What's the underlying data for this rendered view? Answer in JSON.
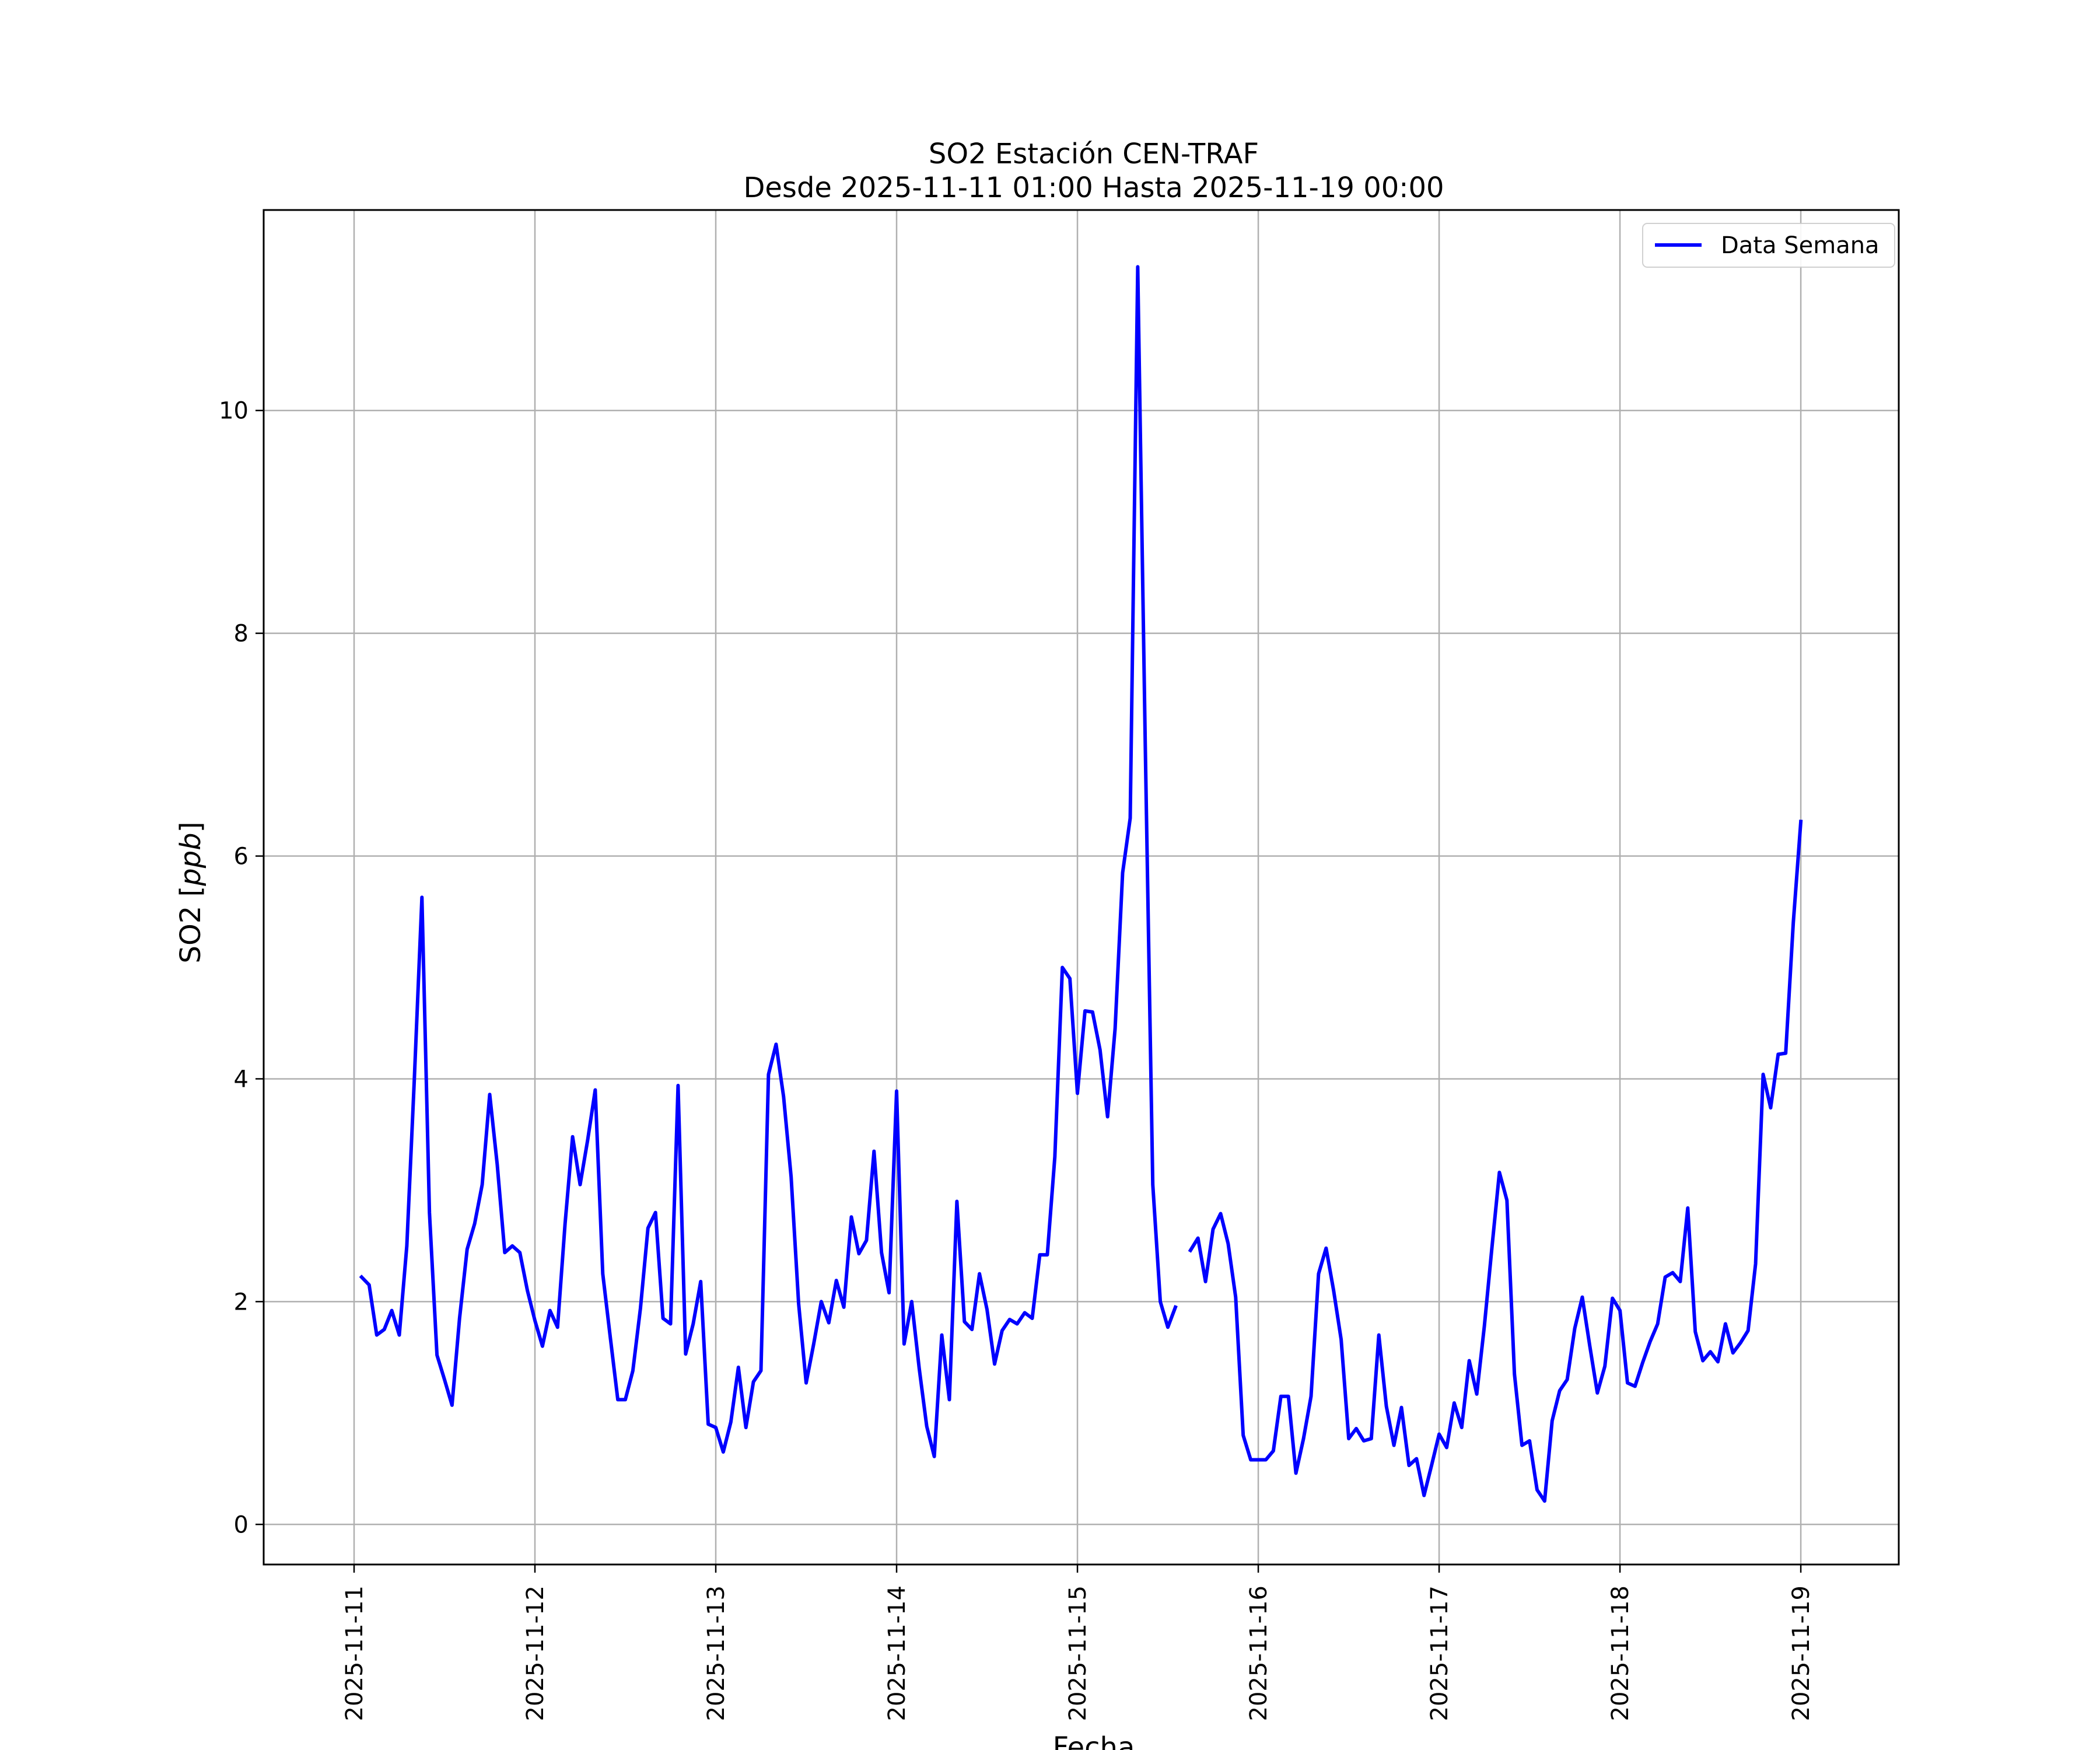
{
  "chart_data": {
    "type": "line",
    "title": "SO2 Estación CEN-TRAF",
    "subtitle": "Desde 2025-11-11 01:00 Hasta 2025-11-19 00:00",
    "xlabel": "Fecha",
    "ylabel_main": "SO2 [",
    "ylabel_unit": "ppb",
    "ylabel_end": "]",
    "x_ticks": [
      "2025-11-11",
      "2025-11-12",
      "2025-11-13",
      "2025-11-14",
      "2025-11-15",
      "2025-11-16",
      "2025-11-17",
      "2025-11-18",
      "2025-11-19"
    ],
    "y_ticks": [
      0,
      2,
      4,
      6,
      8,
      10
    ],
    "xlim": [
      "2025-11-10 12:00",
      "2025-11-19 13:00"
    ],
    "ylim": [
      -0.36,
      11.8
    ],
    "grid": true,
    "legend_position": "top-right",
    "colors": {
      "series": "#0000ff",
      "grid": "#b0b0b0",
      "axes": "#000000"
    },
    "series": [
      {
        "name": "Data Semana",
        "start": "2025-11-11 01:00",
        "interval_hours": 1,
        "values": [
          2.22,
          2.15,
          1.7,
          1.75,
          1.92,
          1.7,
          2.5,
          4.0,
          5.63,
          2.8,
          1.52,
          1.3,
          1.07,
          1.85,
          2.47,
          2.7,
          3.05,
          3.86,
          3.23,
          2.44,
          2.5,
          2.44,
          2.1,
          1.83,
          1.6,
          1.92,
          1.77,
          2.7,
          3.48,
          3.05,
          3.45,
          3.9,
          2.25,
          1.68,
          1.12,
          1.12,
          1.38,
          1.94,
          2.66,
          2.8,
          1.85,
          1.8,
          3.94,
          1.53,
          1.8,
          2.18,
          0.9,
          0.87,
          0.65,
          0.92,
          1.41,
          0.87,
          1.28,
          1.38,
          4.04,
          4.31,
          3.84,
          3.12,
          1.98,
          1.27,
          1.62,
          2.0,
          1.81,
          2.19,
          1.95,
          2.76,
          2.43,
          2.55,
          3.35,
          2.44,
          2.08,
          3.89,
          1.62,
          2.0,
          1.4,
          0.88,
          0.61,
          1.7,
          1.12,
          2.9,
          1.82,
          1.75,
          2.25,
          1.93,
          1.44,
          1.74,
          1.84,
          1.8,
          1.9,
          1.85,
          2.42,
          2.42,
          3.3,
          5.0,
          4.9,
          3.87,
          4.61,
          4.6,
          4.26,
          3.66,
          4.45,
          5.85,
          6.34,
          11.29,
          7.0,
          3.05,
          2.0,
          1.77,
          1.95,
          null,
          2.46,
          2.57,
          2.18,
          2.65,
          2.79,
          2.52,
          2.04,
          0.8,
          0.58,
          0.58,
          0.58,
          0.66,
          1.15,
          1.15,
          0.46,
          0.77,
          1.15,
          2.25,
          2.48,
          2.1,
          1.66,
          0.77,
          0.86,
          0.75,
          0.77,
          1.7,
          1.06,
          0.71,
          1.05,
          0.53,
          0.59,
          0.26,
          0.53,
          0.81,
          0.69,
          1.09,
          0.87,
          1.47,
          1.17,
          1.78,
          2.48,
          3.16,
          2.91,
          1.35,
          0.71,
          0.75,
          0.31,
          0.21,
          0.93,
          1.2,
          1.3,
          1.76,
          2.04,
          1.6,
          1.18,
          1.42,
          2.03,
          1.92,
          1.27,
          1.24,
          1.45,
          1.64,
          1.8,
          2.22,
          2.26,
          2.18,
          2.84,
          1.73,
          1.47,
          1.55,
          1.46,
          1.8,
          1.54,
          1.63,
          1.74,
          2.34,
          4.04,
          3.74,
          4.22,
          4.23,
          5.4,
          6.31
        ]
      }
    ]
  }
}
